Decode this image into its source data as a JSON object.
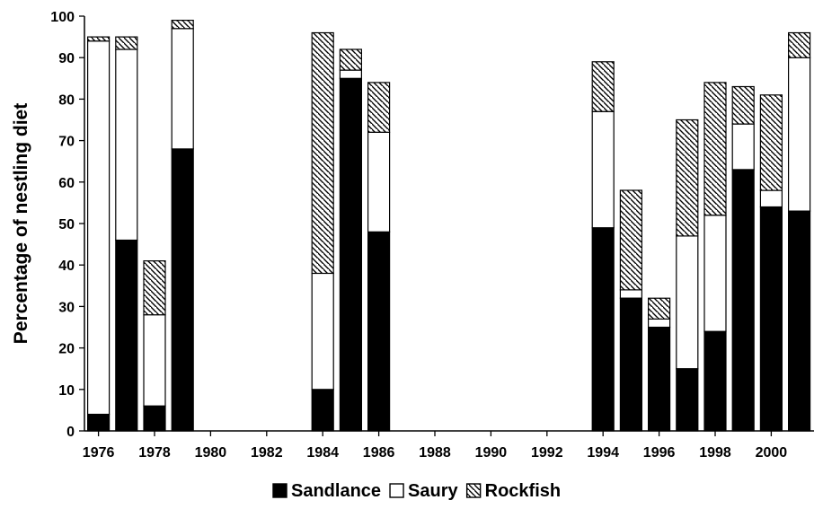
{
  "chart_data": {
    "type": "bar",
    "stacked": true,
    "title": "",
    "xlabel": "",
    "ylabel": "Percentage of nestling diet",
    "ylim": [
      0,
      100
    ],
    "yticks": [
      0,
      10,
      20,
      30,
      40,
      50,
      60,
      70,
      80,
      90,
      100
    ],
    "xlim": [
      1975.5,
      2001
    ],
    "xticks": [
      1976,
      1978,
      1980,
      1982,
      1984,
      1986,
      1988,
      1990,
      1992,
      1994,
      1996,
      1998,
      2000
    ],
    "grid": false,
    "legend_position": "bottom",
    "x": [
      1976,
      1977,
      1978,
      1979,
      1984,
      1985,
      1986,
      1994,
      1995,
      1996,
      1997,
      1998,
      1999,
      2000,
      2001
    ],
    "series": [
      {
        "name": "Sandlance",
        "color": "#000000",
        "pattern": "solid",
        "values": [
          4,
          46,
          6,
          68,
          10,
          85,
          48,
          49,
          32,
          25,
          15,
          24,
          63,
          54,
          53
        ]
      },
      {
        "name": "Saury",
        "color": "#ffffff",
        "pattern": "empty",
        "values": [
          90,
          46,
          22,
          29,
          28,
          2,
          24,
          28,
          2,
          2,
          32,
          28,
          11,
          4,
          37
        ]
      },
      {
        "name": "Rockfish",
        "color": "#ffffff",
        "pattern": "diagonal-hatch",
        "values": [
          1,
          3,
          13,
          2,
          58,
          5,
          12,
          12,
          24,
          5,
          28,
          32,
          9,
          23,
          6
        ]
      }
    ]
  }
}
